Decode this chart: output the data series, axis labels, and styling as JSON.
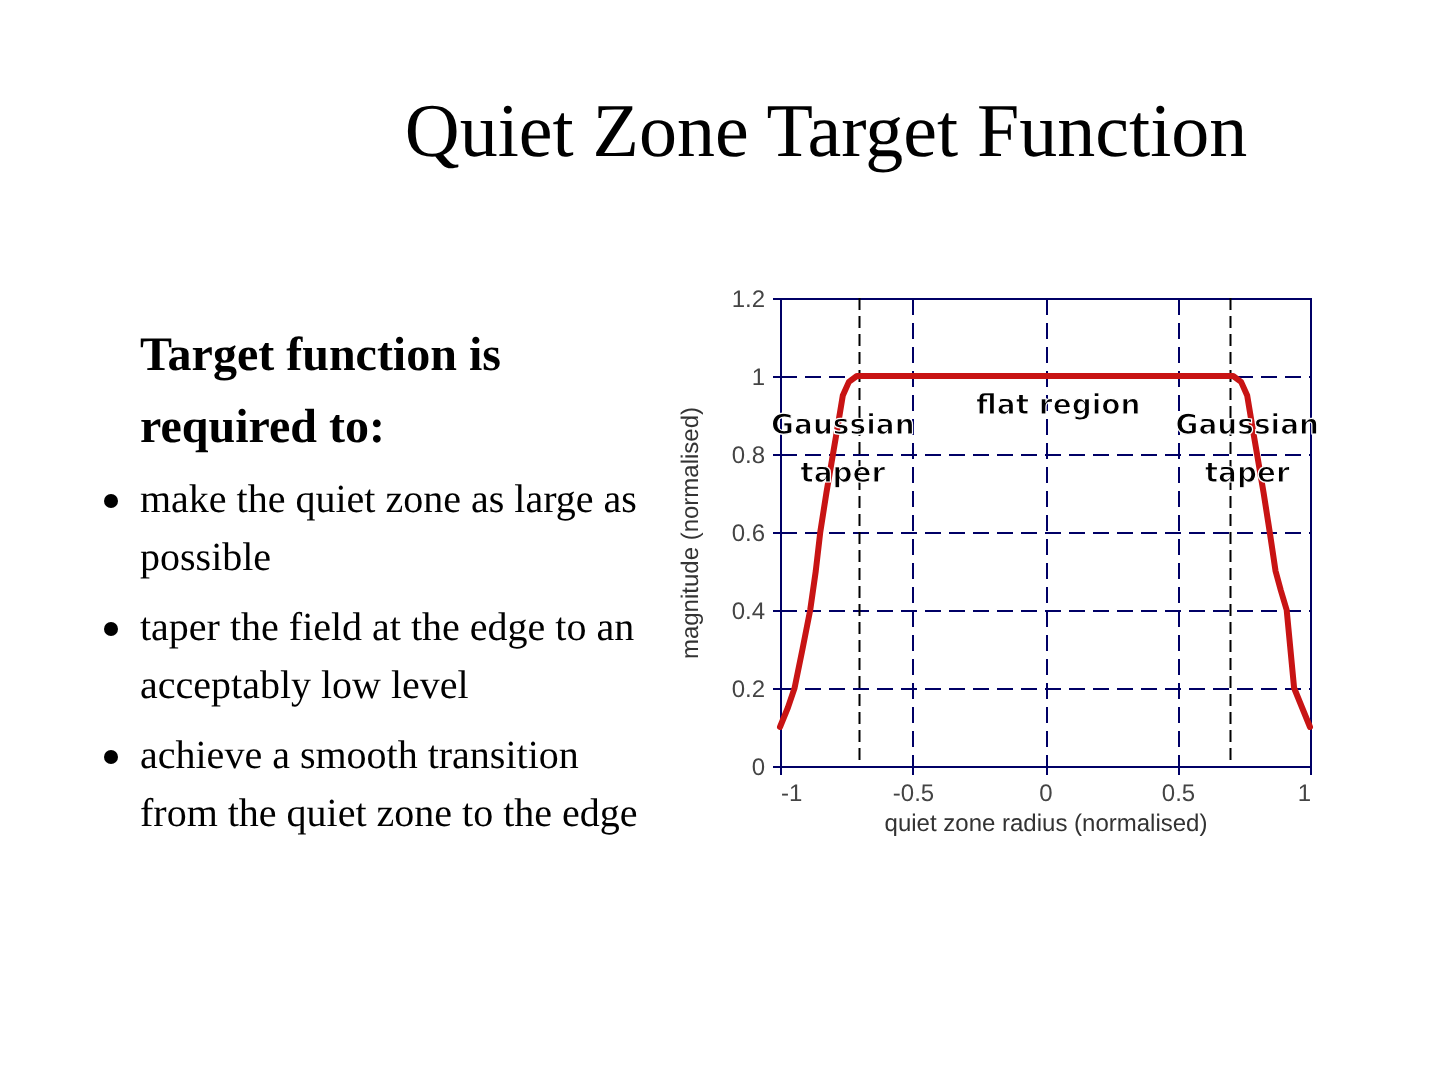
{
  "chart_data": {
    "type": "line",
    "title": "Quiet Zone Target Function",
    "xlabel": "quiet zone radius (normalised)",
    "ylabel": "magnitude (normalised)",
    "x": [
      -1,
      -0.97,
      -0.945,
      -0.915,
      -0.886,
      -0.865,
      -0.848,
      -0.825,
      -0.8,
      -0.78,
      -0.763,
      -0.74,
      -0.71,
      -0.7,
      0.7,
      0.71,
      0.74,
      0.763,
      0.78,
      0.8,
      0.825,
      0.848,
      0.87,
      0.89,
      0.912,
      0.94,
      0.97,
      1
    ],
    "series": [
      {
        "color": "#c81414",
        "values": [
          0.1,
          0.15,
          0.2,
          0.3,
          0.4,
          0.5,
          0.6,
          0.7,
          0.8,
          0.88,
          0.95,
          0.985,
          1,
          1,
          1,
          1,
          0.985,
          0.95,
          0.88,
          0.8,
          0.7,
          0.6,
          0.5,
          0.45,
          0.4,
          0.2,
          0.15,
          0.1
        ]
      }
    ],
    "xlim": [
      -1,
      1
    ],
    "ylim": [
      0,
      1.2
    ],
    "xticks": [
      -1,
      -0.5,
      0,
      0.5,
      1
    ],
    "yticks": [
      0,
      0.2,
      0.4,
      0.6,
      0.8,
      1,
      1.2
    ],
    "grid": true,
    "line_style": "solid",
    "marker": "none",
    "ref_lines": [
      {
        "axis": "x",
        "value": -0.7,
        "color": "#000000",
        "line_style": "dashed"
      },
      {
        "axis": "x",
        "value": 0.7,
        "color": "#000000",
        "line_style": "dashed"
      }
    ],
    "annotations": [
      "Target function is required to:",
      "make the quiet zone as large as possible",
      "taper the field at the edge to an acceptably low level",
      "achieve a smooth transition from the quiet zone to the edge",
      {
        "text": "Gaussian taper",
        "x": -0.763,
        "y": 0.95
      },
      {
        "text": "flat region",
        "x": 0.05,
        "y": 1
      },
      {
        "text": "Gaussian taper",
        "x": 0.763,
        "y": 0.95
      }
    ]
  }
}
